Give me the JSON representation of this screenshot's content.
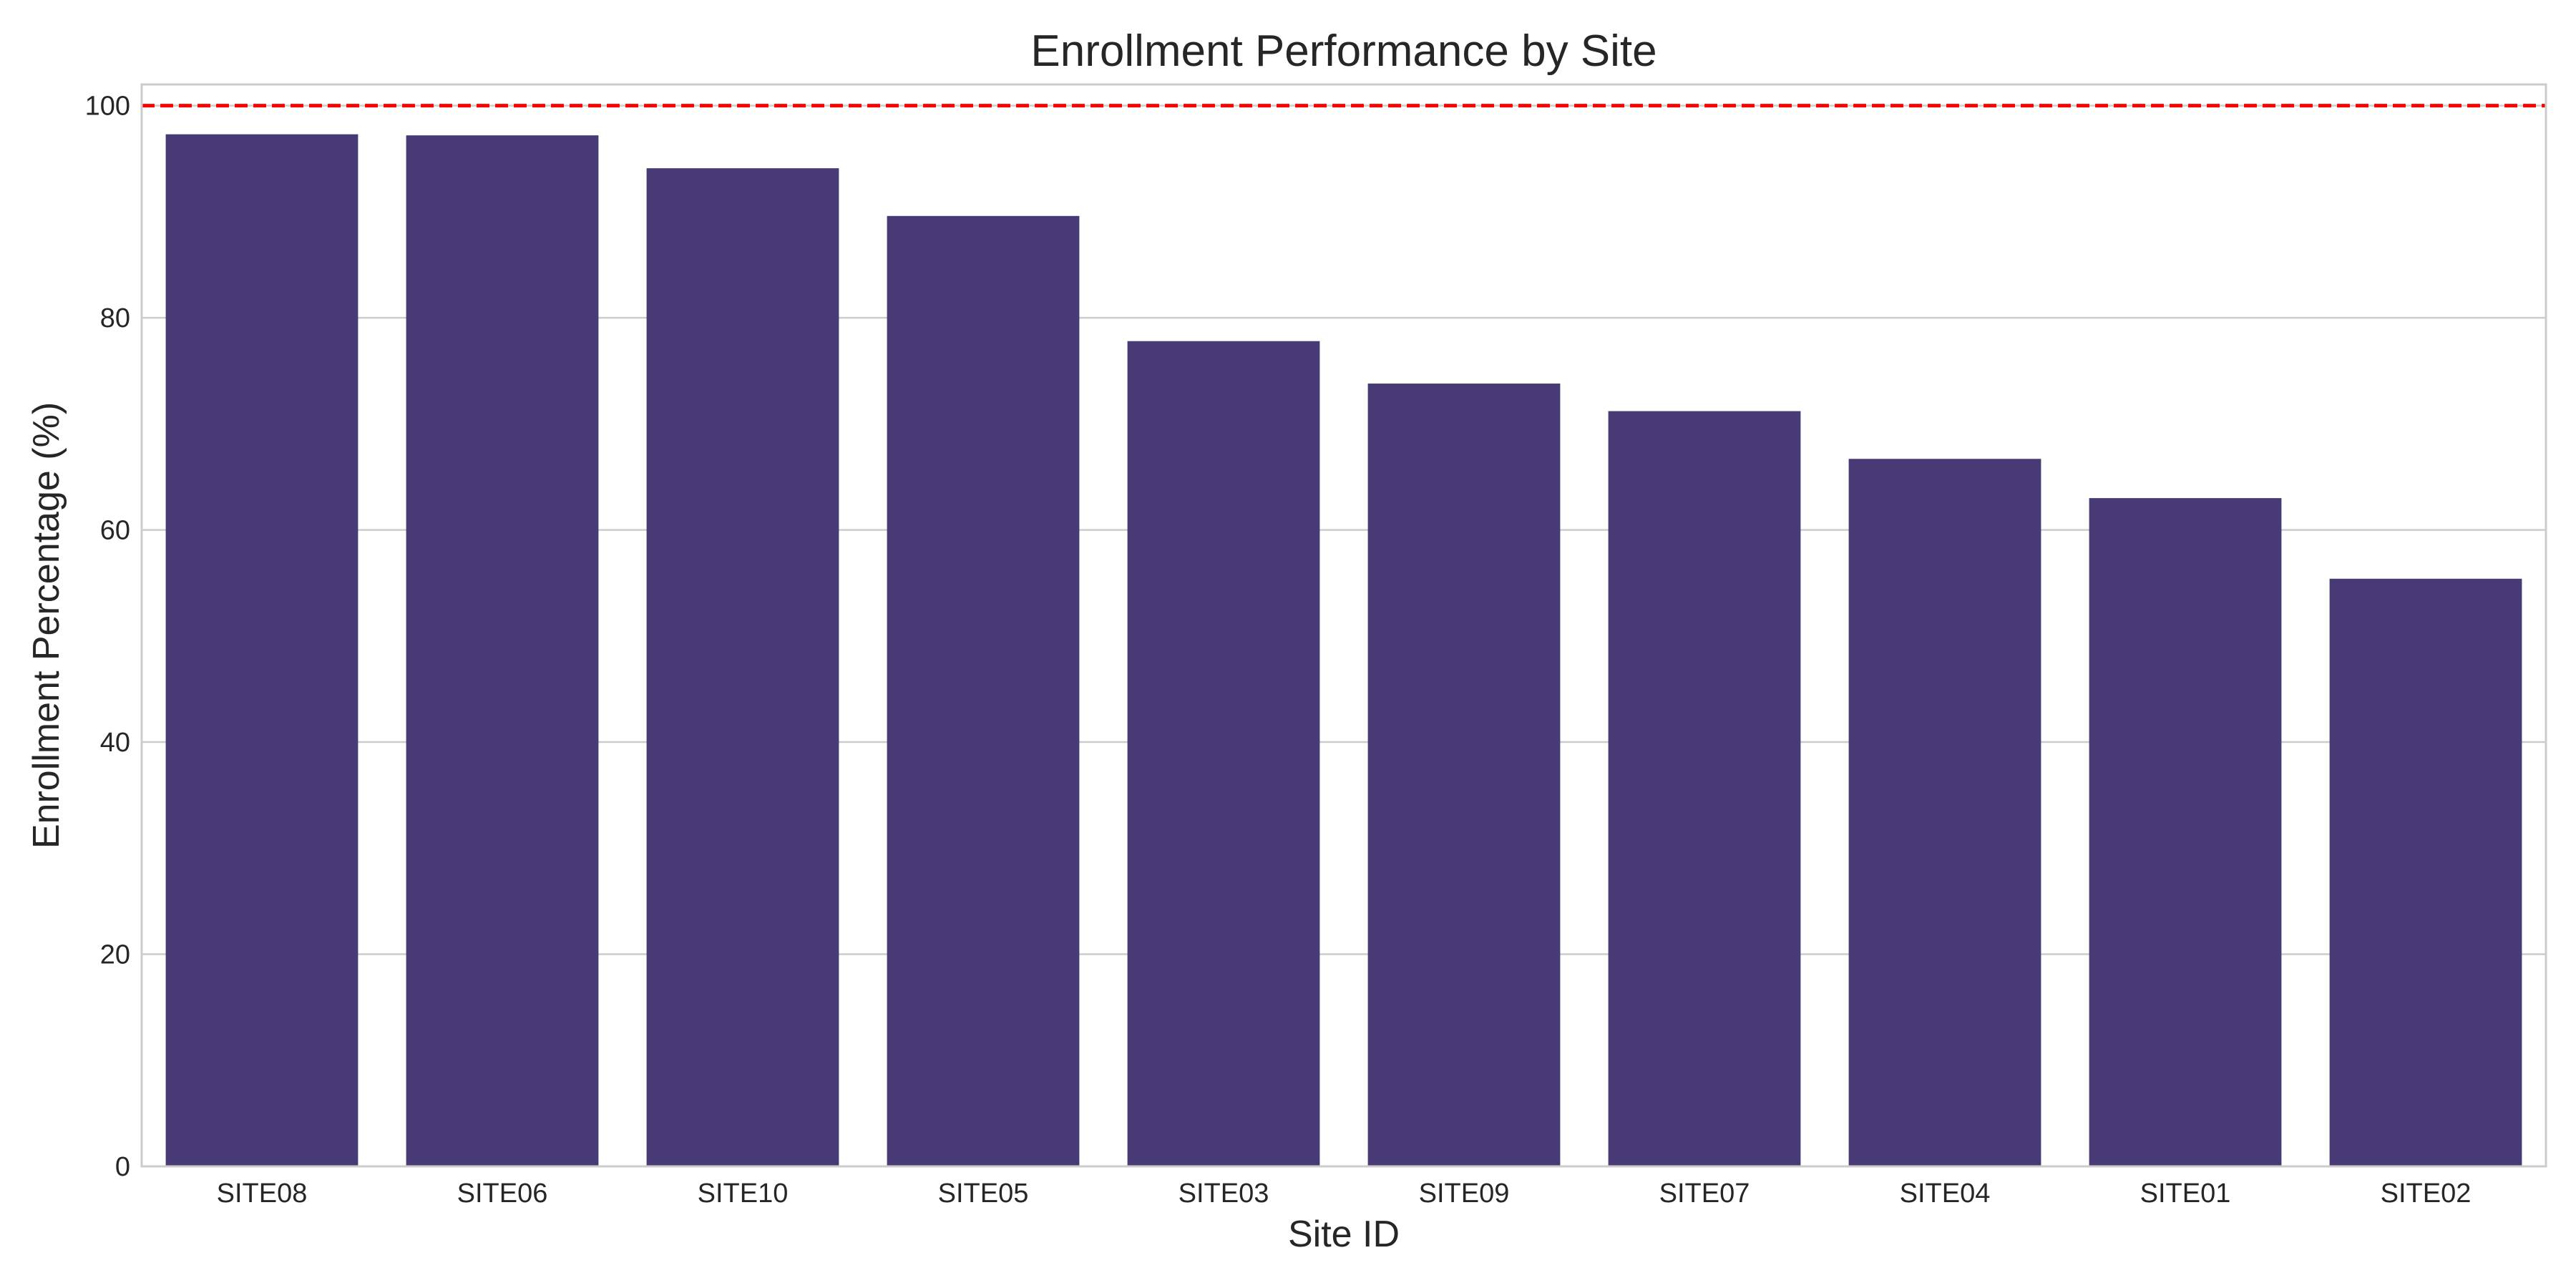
{
  "chart_data": {
    "type": "bar",
    "title": "Enrollment Performance by Site",
    "xlabel": "Site ID",
    "ylabel": "Enrollment Percentage (%)",
    "categories": [
      "SITE08",
      "SITE06",
      "SITE10",
      "SITE05",
      "SITE03",
      "SITE09",
      "SITE07",
      "SITE04",
      "SITE01",
      "SITE02"
    ],
    "values": [
      97.3,
      97.2,
      94.1,
      89.6,
      77.8,
      73.8,
      71.2,
      66.7,
      63.0,
      55.4
    ],
    "ylim": [
      0,
      102
    ],
    "yticks": [
      0,
      20,
      40,
      60,
      80,
      100
    ],
    "reference_line": {
      "value": 100,
      "style": "dashed",
      "color": "#ff0000"
    },
    "bar_color": "#483a75",
    "grid": true,
    "legend": false
  }
}
